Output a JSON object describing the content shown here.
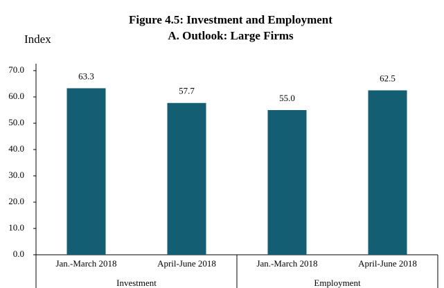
{
  "chart_data": {
    "type": "bar",
    "title": "Figure 4.5: Investment and Employment",
    "subtitle": "A. Outlook: Large Firms",
    "y_axis_label": "Index",
    "categories": [
      "Jan.-March 2018",
      "April-June 2018",
      "Jan.-March 2018",
      "April-June 2018"
    ],
    "groups": [
      "Investment",
      "Employment"
    ],
    "values": [
      63.3,
      57.7,
      55.0,
      62.5
    ],
    "value_labels": [
      "63.3",
      "57.7",
      "55.0",
      "62.5"
    ],
    "color": "#135e72",
    "ylim": [
      0,
      70
    ],
    "yticks": [
      {
        "value": 0,
        "label": "0.0"
      },
      {
        "value": 10,
        "label": "10.0"
      },
      {
        "value": 20,
        "label": "20.0"
      },
      {
        "value": 30,
        "label": "30.0"
      },
      {
        "value": 40,
        "label": "40.0"
      },
      {
        "value": 50,
        "label": "50.0"
      },
      {
        "value": 60,
        "label": "60.0"
      },
      {
        "value": 70,
        "label": "70.0"
      }
    ],
    "grid": false
  }
}
